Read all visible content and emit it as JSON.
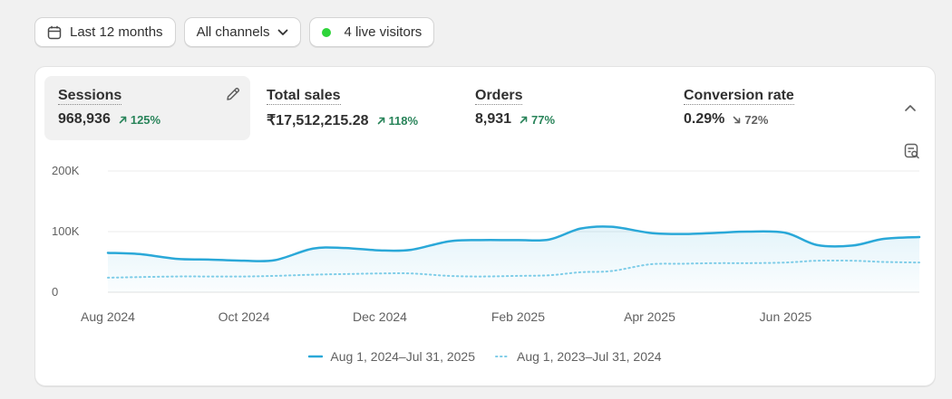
{
  "filters": {
    "date_range": {
      "label": "Last 12 months",
      "icon": "calendar-icon"
    },
    "channels": {
      "label": "All channels",
      "icon": "chevron-down-icon"
    },
    "live": {
      "label": "4 live visitors",
      "dot_color": "#2ed43a"
    }
  },
  "metrics": [
    {
      "label": "Sessions",
      "value": "968,936",
      "change": "125%",
      "direction": "up",
      "active": true
    },
    {
      "label": "Total sales",
      "value": "₹17,512,215.28",
      "change": "118%",
      "direction": "up",
      "active": false
    },
    {
      "label": "Orders",
      "value": "8,931",
      "change": "77%",
      "direction": "up",
      "active": false
    },
    {
      "label": "Conversion rate",
      "value": "0.29%",
      "change": "72%",
      "direction": "down",
      "active": false
    }
  ],
  "colors": {
    "positive": "#29845a",
    "negative": "#616161",
    "series_current": "#2aa8d8",
    "series_previous": "#7fcde8"
  },
  "icons": {
    "edit": "pencil-icon",
    "collapse": "chevron-up-icon",
    "table_view": "table-search-icon"
  },
  "chart_data": {
    "type": "line",
    "x_ticks": [
      "Aug 2024",
      "Oct 2024",
      "Dec 2024",
      "Feb 2025",
      "Apr 2025",
      "Jun 2025"
    ],
    "y_ticks": [
      "0",
      "100K",
      "200K"
    ],
    "ylim": [
      0,
      200000
    ],
    "grid": true,
    "legend_position": "bottom",
    "x": [
      "2024-08-01",
      "2024-08-15",
      "2024-09-01",
      "2024-09-15",
      "2024-10-01",
      "2024-10-15",
      "2024-11-01",
      "2024-11-15",
      "2024-12-01",
      "2024-12-15",
      "2025-01-01",
      "2025-01-15",
      "2025-02-01",
      "2025-02-15",
      "2025-03-01",
      "2025-03-15",
      "2025-04-01",
      "2025-04-15",
      "2025-05-01",
      "2025-05-15",
      "2025-06-01",
      "2025-06-15",
      "2025-07-01",
      "2025-07-15",
      "2025-07-31"
    ],
    "series": [
      {
        "name": "Aug 1, 2024–Jul 31, 2025",
        "style": "solid",
        "values": [
          65000,
          63000,
          55000,
          54000,
          52000,
          53000,
          72000,
          73000,
          69000,
          70000,
          84000,
          86000,
          86000,
          87000,
          105000,
          108000,
          98000,
          96000,
          98000,
          100000,
          98000,
          78000,
          77000,
          88000,
          91000
        ]
      },
      {
        "name": "Aug 1, 2023–Jul 31, 2024",
        "style": "dotted",
        "values": [
          24000,
          25000,
          26000,
          26000,
          26000,
          27000,
          29000,
          30000,
          31000,
          31000,
          27000,
          26000,
          27000,
          28000,
          33000,
          35000,
          46000,
          47000,
          48000,
          48000,
          49000,
          52000,
          52000,
          50000,
          49000
        ]
      }
    ]
  }
}
